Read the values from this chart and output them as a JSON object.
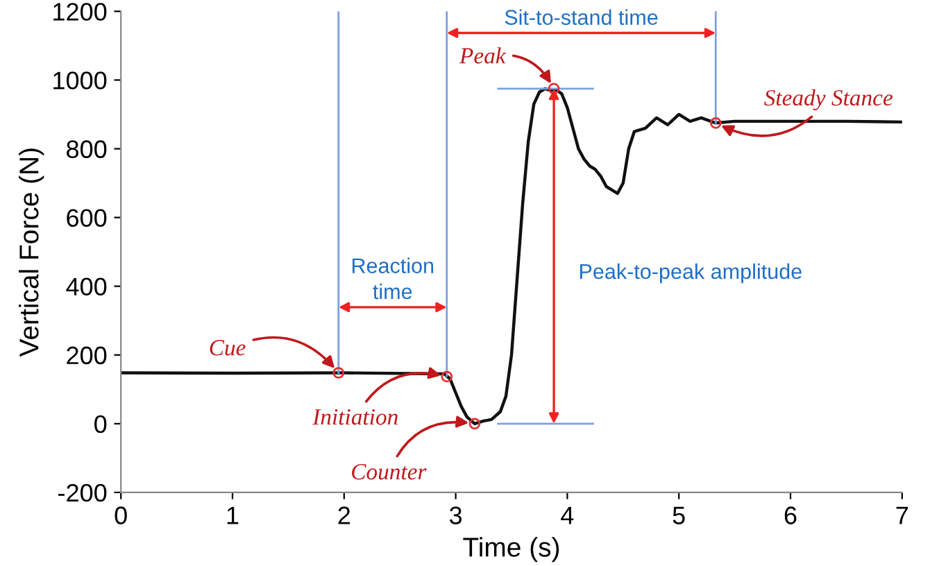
{
  "chart_data": {
    "type": "line",
    "xlabel": "Time (s)",
    "ylabel": "Vertical Force (N)",
    "xlim": [
      0,
      7
    ],
    "xticks": [
      0,
      1,
      2,
      3,
      4,
      5,
      6,
      7
    ],
    "ylim": [
      -200,
      1200
    ],
    "yticks": [
      -200,
      0,
      200,
      400,
      600,
      800,
      1000,
      1200
    ],
    "grid": false,
    "legend": false,
    "series": [
      {
        "color": "#111111",
        "x": [
          0,
          1,
          2,
          2.9,
          2.95,
          3.0,
          3.05,
          3.1,
          3.17,
          3.25,
          3.32,
          3.4,
          3.45,
          3.5,
          3.55,
          3.6,
          3.65,
          3.7,
          3.75,
          3.8,
          3.85,
          3.9,
          3.95,
          4.0,
          4.05,
          4.1,
          4.15,
          4.2,
          4.25,
          4.3,
          4.35,
          4.4,
          4.45,
          4.5,
          4.55,
          4.6,
          4.7,
          4.8,
          4.9,
          5.0,
          5.1,
          5.2,
          5.33,
          5.5,
          6.0,
          6.5,
          7.0
        ],
        "values": [
          148,
          147,
          148,
          145,
          130,
          90,
          50,
          20,
          0,
          8,
          12,
          35,
          80,
          200,
          420,
          640,
          820,
          930,
          965,
          975,
          970,
          972,
          960,
          920,
          860,
          800,
          770,
          750,
          740,
          720,
          690,
          680,
          670,
          700,
          800,
          850,
          860,
          890,
          870,
          900,
          880,
          890,
          875,
          880,
          880,
          880,
          878
        ]
      }
    ],
    "ref_lines": [
      {
        "axis": "x",
        "value": 1.95,
        "color": "#7c9fe0"
      },
      {
        "axis": "x",
        "value": 2.92,
        "color": "#7c9fe0"
      },
      {
        "axis": "x",
        "value": 5.33,
        "color": "#7c9fe0"
      },
      {
        "axis": "y",
        "value": 975,
        "color": "#7c9fe0"
      },
      {
        "axis": "y",
        "value": 0,
        "color": "#7c9fe0"
      }
    ],
    "annotations": [
      {
        "text": "Cue",
        "x": 1.95,
        "y": 148
      },
      {
        "text": "Initiation",
        "x": 2.92,
        "y": 137
      },
      {
        "text": "Counter",
        "x": 3.17,
        "y": 0
      },
      {
        "text": "Peak",
        "x": 3.88,
        "y": 975
      },
      {
        "text": "Steady Stance",
        "x": 5.33,
        "y": 875
      },
      "Reaction time",
      "Sit-to-stand time",
      "Peak-to-peak amplitude"
    ]
  }
}
